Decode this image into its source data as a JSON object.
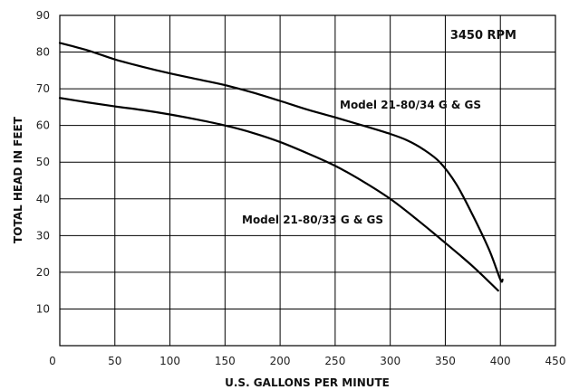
{
  "chart_data": {
    "type": "line",
    "xlabel": "U.S. GALLONS PER MINUTE",
    "ylabel": "TOTAL HEAD IN FEET",
    "xlim": [
      0,
      450
    ],
    "ylim": [
      0,
      90
    ],
    "xticks": [
      0,
      50,
      100,
      150,
      200,
      250,
      300,
      350,
      400,
      450
    ],
    "yticks": [
      10,
      20,
      30,
      40,
      50,
      60,
      70,
      80,
      90
    ],
    "grid": true,
    "annotation": "3450 RPM",
    "series": [
      {
        "name": "Model 21-80/34 G & GS",
        "x": [
          0,
          25,
          50,
          75,
          100,
          125,
          150,
          175,
          200,
          225,
          250,
          275,
          300,
          315,
          330,
          345,
          360,
          375,
          390,
          400,
          402
        ],
        "y": [
          82.5,
          80.5,
          78,
          76,
          74.2,
          72.6,
          71,
          69,
          66.7,
          64.3,
          62.2,
          60,
          57.7,
          56,
          53.5,
          50,
          44,
          35.5,
          26,
          18,
          18
        ]
      },
      {
        "name": "Model 21-80/33 G & GS",
        "x": [
          0,
          25,
          50,
          75,
          100,
          125,
          150,
          175,
          200,
          225,
          250,
          275,
          300,
          325,
          350,
          375,
          398
        ],
        "y": [
          67.5,
          66.3,
          65.2,
          64.2,
          63,
          61.6,
          60,
          58,
          55.5,
          52.4,
          49,
          44.8,
          40,
          34.2,
          28,
          21.6,
          15
        ]
      }
    ]
  }
}
